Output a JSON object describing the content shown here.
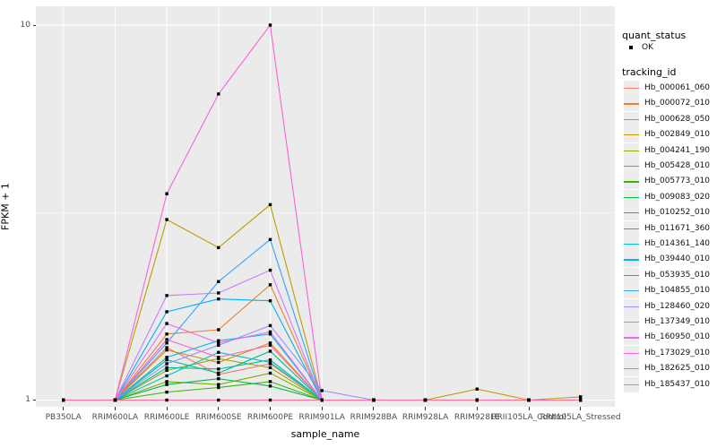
{
  "chart_data": {
    "type": "line",
    "xlabel": "sample_name",
    "ylabel": "FPKM + 1",
    "yscale": "log10",
    "ylim": [
      1,
      10
    ],
    "yticks": [
      1,
      10
    ],
    "grid": true,
    "panel_bg": "#EBEBEB",
    "grid_color": "#FFFFFF",
    "point_color": "#000000",
    "tick_label_color": "#4D4D4D",
    "categories": [
      "PB350LA",
      "RRIM600LA",
      "RRIM600LE",
      "RRIM600SE",
      "RRIM600PE",
      "RRIM901LA",
      "RRIM928BA",
      "RRIM928LA",
      "RRIM928LE",
      "RRII105LA_Control",
      "RRII105LA_Stressed"
    ],
    "legend": {
      "position": "right",
      "quant_status": {
        "title": "quant_status",
        "items": [
          {
            "label": "OK",
            "shape": "black-point"
          }
        ]
      },
      "tracking_id": {
        "title": "tracking_id"
      }
    },
    "series": [
      {
        "name": "Hb_000061_060",
        "color": "#F8766D",
        "values": [
          1,
          1,
          1.38,
          1.17,
          1.25,
          1,
          1,
          1,
          1,
          1,
          1
        ]
      },
      {
        "name": "Hb_000072_010",
        "color": "#EA8331",
        "values": [
          1,
          1,
          1.5,
          1.54,
          2.03,
          1,
          1,
          1,
          1,
          1,
          1
        ]
      },
      {
        "name": "Hb_000628_050",
        "color": "#D89000",
        "values": [
          1,
          1,
          1.36,
          1.26,
          1.42,
          1,
          1,
          1,
          1,
          1,
          1
        ]
      },
      {
        "name": "Hb_002849_010",
        "color": "#C09B00",
        "values": [
          1,
          1,
          3.03,
          2.55,
          3.32,
          1,
          1,
          1,
          1.07,
          1,
          1.02
        ]
      },
      {
        "name": "Hb_004241_190",
        "color": "#A3A500",
        "values": [
          1,
          1,
          1.2,
          1.29,
          1.22,
          1,
          1,
          1,
          1,
          1,
          1
        ]
      },
      {
        "name": "Hb_005428_010",
        "color": "#7CAE00",
        "values": [
          1,
          1,
          1.12,
          1.1,
          1.18,
          1,
          1,
          1,
          1,
          1,
          1
        ]
      },
      {
        "name": "Hb_005773_010",
        "color": "#39B600",
        "values": [
          1,
          1,
          1.05,
          1.08,
          1.12,
          1,
          1,
          1,
          1,
          1,
          1
        ]
      },
      {
        "name": "Hb_009083_020",
        "color": "#00BB4E",
        "values": [
          1,
          1,
          1.1,
          1.14,
          1.09,
          1,
          1,
          1,
          1,
          1,
          1
        ]
      },
      {
        "name": "Hb_010252_010",
        "color": "#00C087",
        "values": [
          1,
          1,
          1.28,
          1.18,
          1.35,
          1,
          1,
          1,
          1,
          1,
          1
        ]
      },
      {
        "name": "Hb_011671_360",
        "color": "#00C1A3",
        "values": [
          1,
          1,
          1.22,
          1.21,
          1.28,
          1,
          1,
          1,
          1,
          1,
          1
        ]
      },
      {
        "name": "Hb_014361_140",
        "color": "#00BFC4",
        "values": [
          1,
          1,
          1.16,
          1.34,
          1.26,
          1,
          1,
          1,
          1,
          1,
          1
        ]
      },
      {
        "name": "Hb_039440_010",
        "color": "#00BAE0",
        "values": [
          1,
          1,
          1.3,
          1.44,
          1.5,
          1,
          1,
          1,
          1,
          1,
          1
        ]
      },
      {
        "name": "Hb_053935_010",
        "color": "#00B0F6",
        "values": [
          1,
          1,
          1.72,
          1.86,
          1.84,
          1,
          1,
          1,
          1,
          1,
          1
        ]
      },
      {
        "name": "Hb_104855_010",
        "color": "#35A2FF",
        "values": [
          1,
          1,
          1.42,
          2.07,
          2.68,
          1,
          1,
          1,
          1,
          1,
          1
        ]
      },
      {
        "name": "Hb_128460_020",
        "color": "#9590FF",
        "values": [
          1,
          1,
          1.25,
          1.4,
          1.58,
          1.06,
          1,
          1,
          1,
          1,
          1
        ]
      },
      {
        "name": "Hb_137349_010",
        "color": "#C77CFF",
        "values": [
          1,
          1,
          1.9,
          1.93,
          2.22,
          1,
          1,
          1,
          1,
          1,
          1
        ]
      },
      {
        "name": "Hb_160950_010",
        "color": "#E76BF3",
        "values": [
          1,
          1,
          1.6,
          1.42,
          1.52,
          1,
          1,
          1,
          1,
          1,
          1
        ]
      },
      {
        "name": "Hb_173029_010",
        "color": "#FA62DB",
        "values": [
          1,
          1,
          3.55,
          6.55,
          10,
          1,
          1,
          1,
          1,
          1,
          1
        ]
      },
      {
        "name": "Hb_182625_010",
        "color": "#FF62BC",
        "values": [
          1,
          1,
          1.45,
          1.3,
          1.4,
          1,
          1,
          1,
          1,
          1,
          1
        ]
      },
      {
        "name": "Hb_185437_010",
        "color": "#FF6A98",
        "values": [
          1,
          1,
          1,
          1,
          1,
          1,
          1,
          1,
          1,
          1,
          1
        ]
      }
    ]
  }
}
